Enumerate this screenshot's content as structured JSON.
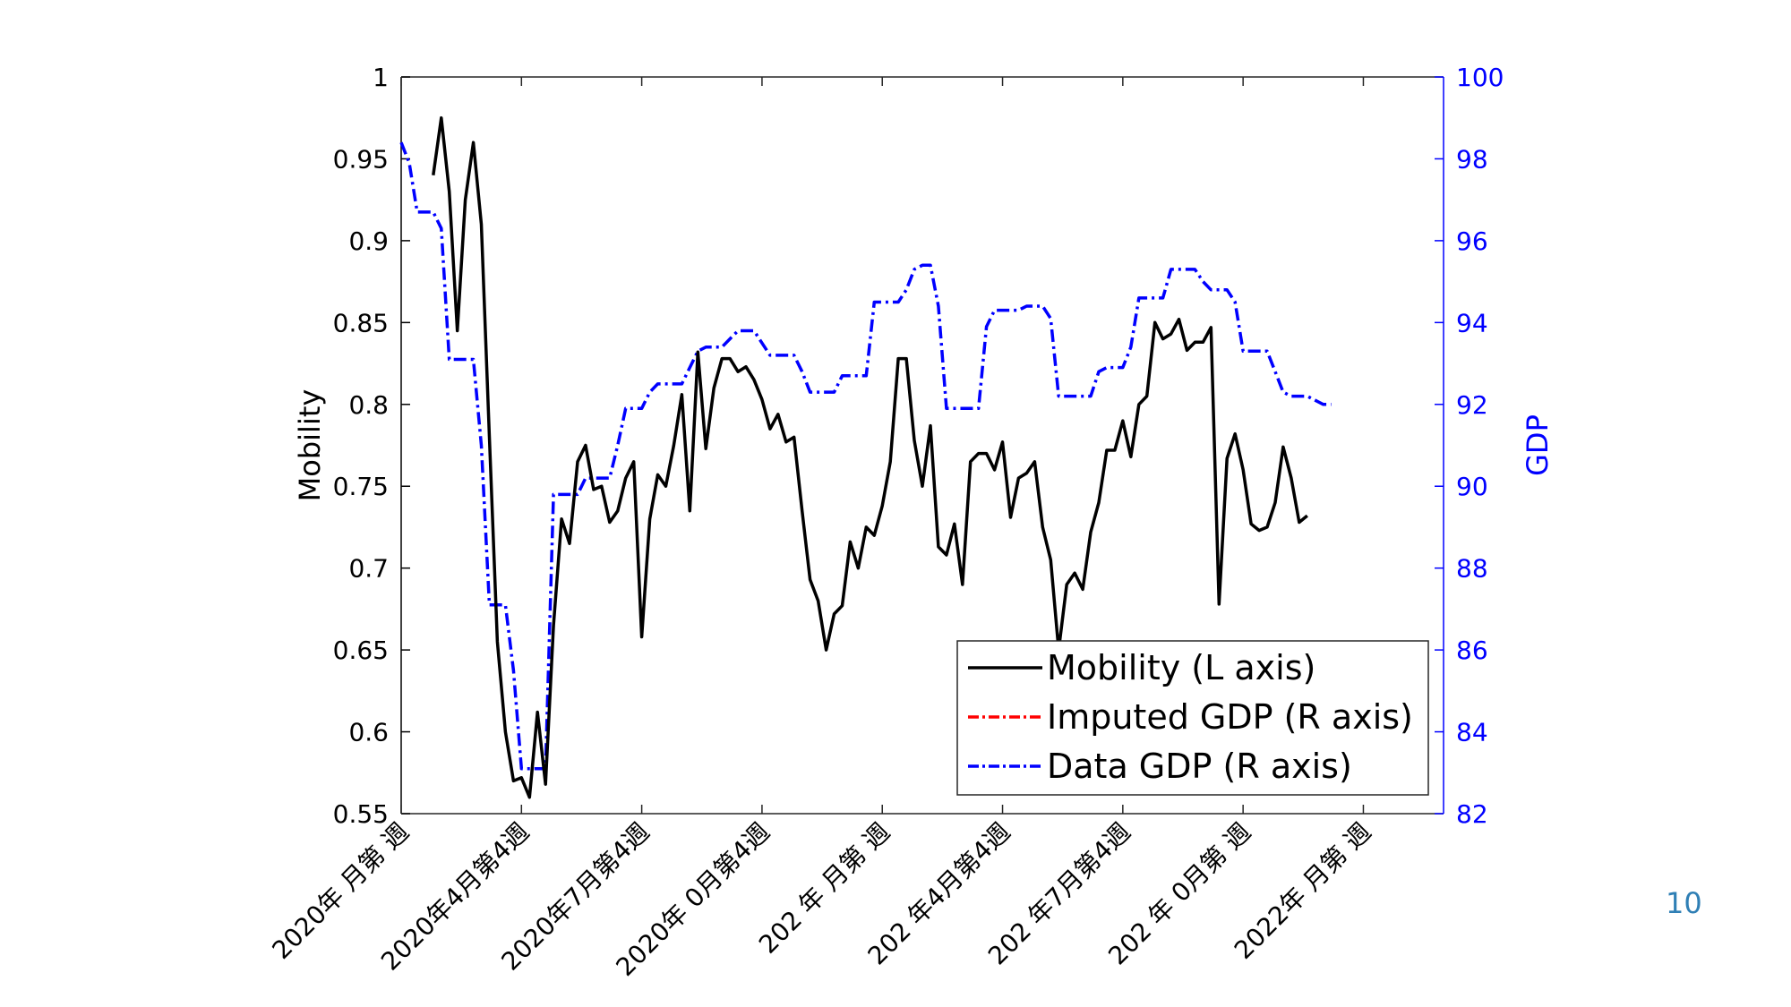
{
  "page": {
    "page_number": "10",
    "page_number_color": "#2f7fb5"
  },
  "chart_data": {
    "type": "line",
    "ylabel": "Mobility",
    "y2label": "GDP",
    "ylim": [
      0.55,
      1.0
    ],
    "y2lim": [
      82,
      100
    ],
    "yticks": [
      "0.55",
      "0.6",
      "0.65",
      "0.7",
      "0.75",
      "0.8",
      "0.85",
      "0.9",
      "0.95",
      "1"
    ],
    "y2ticks": [
      "82",
      "84",
      "86",
      "88",
      "90",
      "92",
      "94",
      "96",
      "98",
      "100"
    ],
    "x_count": 131,
    "xticks": [
      {
        "index": 1,
        "label": "2020年 月第 週"
      },
      {
        "index": 16,
        "label": "2020年4月第4週"
      },
      {
        "index": 31,
        "label": "2020年7月第4週"
      },
      {
        "index": 46,
        "label": "2020年 0月第4週"
      },
      {
        "index": 61,
        "label": "202 年 月第 週"
      },
      {
        "index": 76,
        "label": "202 年4月第4週"
      },
      {
        "index": 91,
        "label": "202 年7月第4週"
      },
      {
        "index": 106,
        "label": "202 年 0月第 週"
      },
      {
        "index": 121,
        "label": "2022年 月第 週"
      }
    ],
    "grid": false,
    "legend_position": "lower-right",
    "colors": {
      "mobility": "#000000",
      "imputed_gdp": "#ff0000",
      "data_gdp": "#0000ff",
      "right_axis": "#0000ff",
      "left_axis": "#000000"
    },
    "series": [
      {
        "name": "Mobility (L axis)",
        "axis": "left",
        "style": "solid",
        "values": [
          null,
          null,
          null,
          null,
          0.94,
          0.975,
          0.93,
          0.845,
          0.925,
          0.96,
          0.91,
          0.78,
          0.655,
          0.6,
          0.57,
          0.572,
          0.56,
          0.612,
          0.568,
          0.665,
          0.73,
          0.715,
          0.765,
          0.775,
          0.748,
          0.75,
          0.728,
          0.735,
          0.755,
          0.765,
          0.658,
          0.73,
          0.757,
          0.75,
          0.775,
          0.806,
          0.735,
          0.832,
          0.773,
          0.81,
          0.828,
          0.828,
          0.82,
          0.823,
          0.815,
          0.803,
          0.785,
          0.794,
          0.777,
          0.78,
          0.735,
          0.693,
          0.68,
          0.65,
          0.672,
          0.677,
          0.716,
          0.7,
          0.725,
          0.72,
          0.738,
          0.765,
          0.828,
          0.828,
          0.778,
          0.75,
          0.787,
          0.713,
          0.708,
          0.727,
          0.69,
          0.765,
          0.77,
          0.77,
          0.76,
          0.777,
          0.731,
          0.755,
          0.758,
          0.765,
          0.725,
          0.705,
          0.65,
          0.69,
          0.697,
          0.687,
          0.722,
          0.74,
          0.772,
          0.772,
          0.79,
          0.768,
          0.8,
          0.805,
          0.85,
          0.84,
          0.843,
          0.852,
          0.833,
          0.838,
          0.838,
          0.847,
          0.678,
          0.767,
          0.782,
          0.76,
          0.727,
          0.723,
          0.725,
          0.74,
          0.774,
          0.755,
          0.728,
          0.732,
          null,
          null,
          null,
          null,
          null,
          null,
          null,
          null,
          null,
          null,
          null,
          null,
          null,
          null,
          null,
          null,
          null
        ]
      },
      {
        "name": "Imputed GDP (R axis)",
        "axis": "right",
        "style": "dashdot",
        "values": []
      },
      {
        "name": "Data GDP (R axis)",
        "axis": "right",
        "style": "dashdot",
        "values": [
          98.4,
          97.9,
          96.7,
          96.7,
          96.7,
          96.3,
          93.1,
          93.1,
          93.1,
          93.1,
          91.0,
          87.1,
          87.1,
          87.1,
          85.5,
          83.1,
          83.1,
          83.1,
          83.1,
          89.8,
          89.8,
          89.8,
          89.8,
          90.2,
          90.2,
          90.2,
          90.2,
          91.0,
          91.9,
          91.9,
          91.9,
          92.3,
          92.5,
          92.5,
          92.5,
          92.5,
          92.9,
          93.3,
          93.4,
          93.4,
          93.4,
          93.6,
          93.8,
          93.8,
          93.8,
          93.5,
          93.2,
          93.2,
          93.2,
          93.2,
          92.8,
          92.3,
          92.3,
          92.3,
          92.3,
          92.7,
          92.7,
          92.7,
          92.7,
          94.5,
          94.5,
          94.5,
          94.5,
          94.8,
          95.3,
          95.4,
          95.4,
          94.4,
          91.9,
          91.9,
          91.9,
          91.9,
          91.9,
          93.9,
          94.3,
          94.3,
          94.3,
          94.3,
          94.4,
          94.4,
          94.4,
          94.1,
          92.2,
          92.2,
          92.2,
          92.2,
          92.2,
          92.8,
          92.9,
          92.9,
          92.9,
          93.4,
          94.6,
          94.6,
          94.6,
          94.6,
          95.3,
          95.3,
          95.3,
          95.3,
          95.0,
          94.8,
          94.8,
          94.8,
          94.5,
          93.3,
          93.3,
          93.3,
          93.3,
          92.8,
          92.3,
          92.2,
          92.2,
          92.2,
          92.1,
          92.0,
          92.0
        ]
      }
    ]
  }
}
